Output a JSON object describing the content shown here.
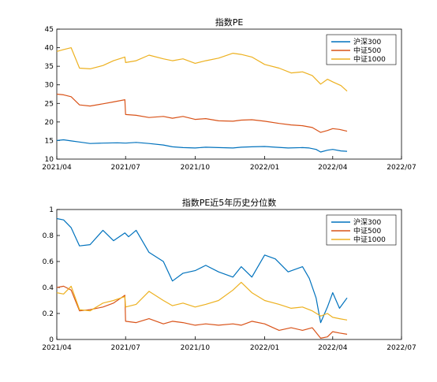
{
  "chart_data": [
    {
      "type": "line",
      "title": "指数PE",
      "ylim": [
        10,
        45
      ],
      "yticks": [
        "10",
        "15",
        "20",
        "25",
        "30",
        "35",
        "40",
        "45"
      ],
      "xticks": [
        "2021/04",
        "2021/07",
        "2021/10",
        "2022/01",
        "2022/04",
        "2022/07"
      ],
      "xlim": [
        "2021-04-01",
        "2022-07-01"
      ],
      "grid": false,
      "legend": "top-right",
      "series": [
        {
          "name": "沪深300",
          "color": "#0072BD",
          "points": [
            [
              "2021-04-01",
              15.0
            ],
            [
              "2021-04-10",
              15.2
            ],
            [
              "2021-04-20",
              14.9
            ],
            [
              "2021-05-01",
              14.6
            ],
            [
              "2021-05-15",
              14.2
            ],
            [
              "2021-06-01",
              14.3
            ],
            [
              "2021-06-20",
              14.4
            ],
            [
              "2021-07-01",
              14.3
            ],
            [
              "2021-07-15",
              14.5
            ],
            [
              "2021-08-01",
              14.2
            ],
            [
              "2021-08-20",
              13.8
            ],
            [
              "2021-09-01",
              13.3
            ],
            [
              "2021-09-15",
              13.1
            ],
            [
              "2021-10-01",
              13.0
            ],
            [
              "2021-10-15",
              13.2
            ],
            [
              "2021-11-01",
              13.1
            ],
            [
              "2021-11-20",
              13.0
            ],
            [
              "2021-12-01",
              13.2
            ],
            [
              "2021-12-15",
              13.3
            ],
            [
              "2022-01-01",
              13.4
            ],
            [
              "2022-01-15",
              13.2
            ],
            [
              "2022-02-01",
              13.0
            ],
            [
              "2022-02-20",
              13.1
            ],
            [
              "2022-03-01",
              13.0
            ],
            [
              "2022-03-10",
              12.6
            ],
            [
              "2022-03-16",
              11.9
            ],
            [
              "2022-03-25",
              12.4
            ],
            [
              "2022-04-01",
              12.6
            ],
            [
              "2022-04-12",
              12.2
            ],
            [
              "2022-04-20",
              12.1
            ]
          ]
        },
        {
          "name": "中证500",
          "color": "#D95319",
          "points": [
            [
              "2021-04-01",
              27.5
            ],
            [
              "2021-04-10",
              27.3
            ],
            [
              "2021-04-20",
              26.8
            ],
            [
              "2021-05-01",
              24.6
            ],
            [
              "2021-05-15",
              24.3
            ],
            [
              "2021-06-01",
              24.9
            ],
            [
              "2021-06-15",
              25.4
            ],
            [
              "2021-06-30",
              26.0
            ],
            [
              "2021-07-01",
              22.0
            ],
            [
              "2021-07-15",
              21.8
            ],
            [
              "2021-08-01",
              21.2
            ],
            [
              "2021-08-20",
              21.5
            ],
            [
              "2021-09-01",
              21.0
            ],
            [
              "2021-09-15",
              21.5
            ],
            [
              "2021-10-01",
              20.7
            ],
            [
              "2021-10-15",
              20.9
            ],
            [
              "2021-11-01",
              20.3
            ],
            [
              "2021-11-20",
              20.2
            ],
            [
              "2021-12-01",
              20.5
            ],
            [
              "2021-12-15",
              20.6
            ],
            [
              "2022-01-01",
              20.2
            ],
            [
              "2022-01-20",
              19.6
            ],
            [
              "2022-02-05",
              19.2
            ],
            [
              "2022-02-20",
              19.0
            ],
            [
              "2022-03-05",
              18.5
            ],
            [
              "2022-03-16",
              17.2
            ],
            [
              "2022-03-25",
              17.7
            ],
            [
              "2022-04-01",
              18.2
            ],
            [
              "2022-04-10",
              18.0
            ],
            [
              "2022-04-20",
              17.5
            ]
          ]
        },
        {
          "name": "中证1000",
          "color": "#EDB120",
          "points": [
            [
              "2021-04-01",
              39.0
            ],
            [
              "2021-04-10",
              39.5
            ],
            [
              "2021-04-20",
              40.0
            ],
            [
              "2021-05-01",
              34.5
            ],
            [
              "2021-05-15",
              34.3
            ],
            [
              "2021-06-01",
              35.2
            ],
            [
              "2021-06-15",
              36.5
            ],
            [
              "2021-06-30",
              37.5
            ],
            [
              "2021-07-01",
              36.0
            ],
            [
              "2021-07-15",
              36.5
            ],
            [
              "2021-08-01",
              38.0
            ],
            [
              "2021-08-20",
              37.0
            ],
            [
              "2021-09-01",
              36.5
            ],
            [
              "2021-09-15",
              37.0
            ],
            [
              "2021-10-01",
              35.8
            ],
            [
              "2021-10-15",
              36.5
            ],
            [
              "2021-11-01",
              37.2
            ],
            [
              "2021-11-20",
              38.5
            ],
            [
              "2021-12-01",
              38.2
            ],
            [
              "2021-12-15",
              37.5
            ],
            [
              "2022-01-01",
              35.5
            ],
            [
              "2022-01-20",
              34.5
            ],
            [
              "2022-02-05",
              33.2
            ],
            [
              "2022-02-20",
              33.5
            ],
            [
              "2022-03-05",
              32.5
            ],
            [
              "2022-03-16",
              30.2
            ],
            [
              "2022-03-25",
              31.5
            ],
            [
              "2022-04-01",
              30.8
            ],
            [
              "2022-04-12",
              29.8
            ],
            [
              "2022-04-20",
              28.3
            ]
          ]
        }
      ]
    },
    {
      "type": "line",
      "title": "指数PE近5年历史分位数",
      "ylim": [
        0,
        1
      ],
      "yticks": [
        "0",
        "0.2",
        "0.4",
        "0.6",
        "0.8",
        "1"
      ],
      "xticks": [
        "2021/04",
        "2021/07",
        "2021/10",
        "2022/01",
        "2022/04",
        "2022/07"
      ],
      "xlim": [
        "2021-04-01",
        "2022-07-01"
      ],
      "grid": false,
      "legend": "top-right",
      "series": [
        {
          "name": "沪深300",
          "color": "#0072BD",
          "points": [
            [
              "2021-04-01",
              0.93
            ],
            [
              "2021-04-10",
              0.92
            ],
            [
              "2021-04-20",
              0.86
            ],
            [
              "2021-05-01",
              0.72
            ],
            [
              "2021-05-15",
              0.73
            ],
            [
              "2021-06-01",
              0.84
            ],
            [
              "2021-06-15",
              0.76
            ],
            [
              "2021-06-30",
              0.82
            ],
            [
              "2021-07-05",
              0.79
            ],
            [
              "2021-07-15",
              0.84
            ],
            [
              "2021-08-01",
              0.67
            ],
            [
              "2021-08-20",
              0.6
            ],
            [
              "2021-09-01",
              0.45
            ],
            [
              "2021-09-15",
              0.51
            ],
            [
              "2021-10-01",
              0.53
            ],
            [
              "2021-10-15",
              0.57
            ],
            [
              "2021-11-01",
              0.52
            ],
            [
              "2021-11-20",
              0.48
            ],
            [
              "2021-12-01",
              0.56
            ],
            [
              "2021-12-15",
              0.48
            ],
            [
              "2022-01-01",
              0.65
            ],
            [
              "2022-01-15",
              0.62
            ],
            [
              "2022-02-01",
              0.52
            ],
            [
              "2022-02-20",
              0.56
            ],
            [
              "2022-03-01",
              0.47
            ],
            [
              "2022-03-10",
              0.32
            ],
            [
              "2022-03-16",
              0.13
            ],
            [
              "2022-03-25",
              0.25
            ],
            [
              "2022-04-01",
              0.36
            ],
            [
              "2022-04-10",
              0.24
            ],
            [
              "2022-04-20",
              0.32
            ]
          ]
        },
        {
          "name": "中证500",
          "color": "#D95319",
          "points": [
            [
              "2021-04-01",
              0.4
            ],
            [
              "2021-04-10",
              0.41
            ],
            [
              "2021-04-20",
              0.38
            ],
            [
              "2021-05-01",
              0.22
            ],
            [
              "2021-05-15",
              0.23
            ],
            [
              "2021-06-01",
              0.25
            ],
            [
              "2021-06-15",
              0.28
            ],
            [
              "2021-06-30",
              0.34
            ],
            [
              "2021-07-01",
              0.14
            ],
            [
              "2021-07-15",
              0.13
            ],
            [
              "2021-08-01",
              0.16
            ],
            [
              "2021-08-20",
              0.12
            ],
            [
              "2021-09-01",
              0.14
            ],
            [
              "2021-09-15",
              0.13
            ],
            [
              "2021-10-01",
              0.11
            ],
            [
              "2021-10-15",
              0.12
            ],
            [
              "2021-11-01",
              0.11
            ],
            [
              "2021-11-20",
              0.12
            ],
            [
              "2021-12-01",
              0.11
            ],
            [
              "2021-12-15",
              0.14
            ],
            [
              "2022-01-01",
              0.12
            ],
            [
              "2022-01-20",
              0.07
            ],
            [
              "2022-02-05",
              0.09
            ],
            [
              "2022-02-20",
              0.07
            ],
            [
              "2022-03-05",
              0.09
            ],
            [
              "2022-03-16",
              0.01
            ],
            [
              "2022-03-25",
              0.02
            ],
            [
              "2022-04-01",
              0.06
            ],
            [
              "2022-04-10",
              0.05
            ],
            [
              "2022-04-20",
              0.04
            ]
          ]
        },
        {
          "name": "中证1000",
          "color": "#EDB120",
          "points": [
            [
              "2021-04-01",
              0.36
            ],
            [
              "2021-04-10",
              0.35
            ],
            [
              "2021-04-20",
              0.41
            ],
            [
              "2021-05-01",
              0.23
            ],
            [
              "2021-05-15",
              0.22
            ],
            [
              "2021-06-01",
              0.28
            ],
            [
              "2021-06-15",
              0.3
            ],
            [
              "2021-06-30",
              0.33
            ],
            [
              "2021-07-01",
              0.25
            ],
            [
              "2021-07-15",
              0.27
            ],
            [
              "2021-08-01",
              0.37
            ],
            [
              "2021-08-20",
              0.3
            ],
            [
              "2021-09-01",
              0.26
            ],
            [
              "2021-09-15",
              0.28
            ],
            [
              "2021-10-01",
              0.25
            ],
            [
              "2021-10-15",
              0.27
            ],
            [
              "2021-11-01",
              0.3
            ],
            [
              "2021-11-20",
              0.38
            ],
            [
              "2021-12-01",
              0.44
            ],
            [
              "2021-12-15",
              0.36
            ],
            [
              "2022-01-01",
              0.3
            ],
            [
              "2022-01-20",
              0.27
            ],
            [
              "2022-02-05",
              0.24
            ],
            [
              "2022-02-20",
              0.25
            ],
            [
              "2022-03-05",
              0.22
            ],
            [
              "2022-03-16",
              0.18
            ],
            [
              "2022-03-25",
              0.2
            ],
            [
              "2022-04-01",
              0.17
            ],
            [
              "2022-04-10",
              0.16
            ],
            [
              "2022-04-20",
              0.15
            ]
          ]
        }
      ]
    }
  ]
}
